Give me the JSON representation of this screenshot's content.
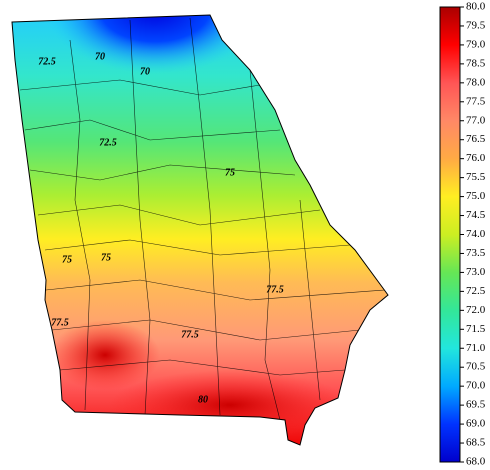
{
  "map": {
    "contour_labels": [
      "72.5",
      "70",
      "70",
      "72.5",
      "75",
      "75",
      "75",
      "77.5",
      "77.5",
      "77.5",
      "80"
    ],
    "colorbar": {
      "lim": [
        68,
        80
      ],
      "colormap": [
        "#0000cc",
        "#0033ff",
        "#00aaff",
        "#22e6dd",
        "#33e699",
        "#66e655",
        "#ccee22",
        "#ffee22",
        "#ffaa44",
        "#ff8866",
        "#ff5555",
        "#ff0000",
        "#aa0000"
      ],
      "ticks": [
        {
          "value": 80,
          "label": "80.0"
        },
        {
          "value": 79.5,
          "label": "79.5"
        },
        {
          "value": 79,
          "label": "79.0"
        },
        {
          "value": 78.5,
          "label": "78.5"
        },
        {
          "value": 78,
          "label": "78.0"
        },
        {
          "value": 77.5,
          "label": "77.5"
        },
        {
          "value": 77,
          "label": "77.0"
        },
        {
          "value": 76.5,
          "label": "76.5"
        },
        {
          "value": 76,
          "label": "76.0"
        },
        {
          "value": 75.5,
          "label": "75.5"
        },
        {
          "value": 75,
          "label": "75.0"
        },
        {
          "value": 74.5,
          "label": "74.5"
        },
        {
          "value": 74,
          "label": "74.0"
        },
        {
          "value": 73.5,
          "label": "73.5"
        },
        {
          "value": 73,
          "label": "73.0"
        },
        {
          "value": 72.5,
          "label": "72.5"
        },
        {
          "value": 72,
          "label": "72.0"
        },
        {
          "value": 71.5,
          "label": "71.5"
        },
        {
          "value": 71,
          "label": "71.0"
        },
        {
          "value": 70.5,
          "label": "70.5"
        },
        {
          "value": 70,
          "label": "70.0"
        },
        {
          "value": 69.5,
          "label": "69.5"
        },
        {
          "value": 69,
          "label": "69.0"
        },
        {
          "value": 68.5,
          "label": "68.5"
        },
        {
          "value": 68,
          "label": "68.0"
        }
      ]
    }
  }
}
